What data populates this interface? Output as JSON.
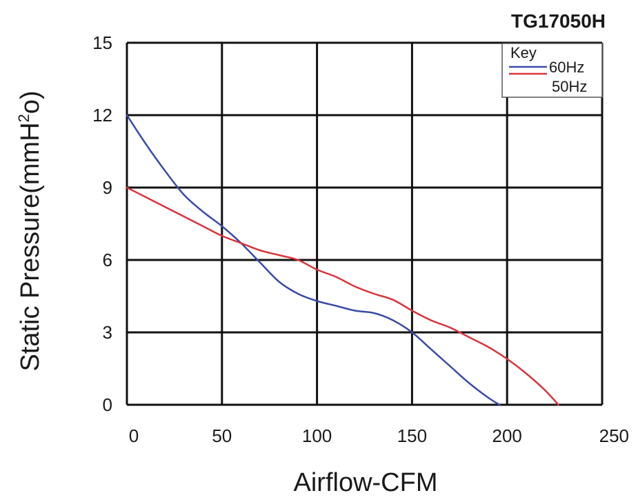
{
  "chart_data": {
    "type": "line",
    "title": "TG17050H",
    "xlabel": "Airflow-CFM",
    "ylabel": "Static Pressure(mmH2o)",
    "ylabel_parts": {
      "main": "Static Pressure(mmH",
      "sup": "2",
      "tail": "o)"
    },
    "xlim": [
      0,
      250
    ],
    "ylim": [
      0,
      15
    ],
    "xticks": [
      "0",
      "50",
      "100",
      "150",
      "200",
      "250"
    ],
    "yticks": [
      "0",
      "3",
      "6",
      "9",
      "12",
      "15"
    ],
    "grid": true,
    "legend": {
      "title": "Key",
      "position": "top-right"
    },
    "series": [
      {
        "name": "60Hz",
        "color": "#3a4aa8",
        "x": [
          0,
          10,
          20,
          30,
          40,
          50,
          60,
          70,
          80,
          90,
          100,
          110,
          120,
          130,
          140,
          150,
          160,
          170,
          180,
          190,
          196
        ],
        "y": [
          12,
          10.8,
          9.7,
          8.7,
          8.0,
          7.4,
          6.7,
          5.9,
          5.1,
          4.6,
          4.3,
          4.1,
          3.9,
          3.8,
          3.5,
          3.0,
          2.3,
          1.6,
          0.9,
          0.3,
          0
        ]
      },
      {
        "name": "50Hz",
        "color": "#d8343a",
        "x": [
          0,
          10,
          20,
          30,
          40,
          50,
          60,
          70,
          80,
          90,
          100,
          110,
          120,
          130,
          140,
          150,
          160,
          170,
          180,
          190,
          200,
          210,
          220,
          227
        ],
        "y": [
          9,
          8.6,
          8.2,
          7.8,
          7.4,
          7.0,
          6.7,
          6.4,
          6.2,
          6.0,
          5.6,
          5.3,
          4.9,
          4.6,
          4.35,
          3.9,
          3.5,
          3.2,
          2.8,
          2.4,
          1.9,
          1.3,
          0.6,
          0
        ]
      }
    ]
  }
}
